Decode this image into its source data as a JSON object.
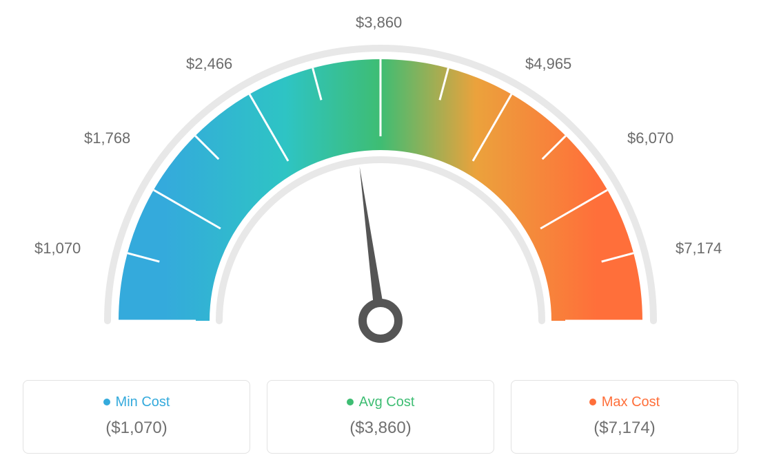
{
  "gauge": {
    "type": "gauge",
    "min_value": 1070,
    "max_value": 7174,
    "avg_value": 3860,
    "needle_value": 3860,
    "scale_labels": [
      "$1,070",
      "$1,768",
      "$2,466",
      "$3,860",
      "$4,965",
      "$6,070",
      "$7,174"
    ],
    "scale_positions_deg": [
      -90,
      -60,
      -30,
      0,
      30,
      60,
      90
    ],
    "colors": {
      "min": "#34aadc",
      "avg": "#3ebd73",
      "max": "#ff6f3a",
      "teal": "#2ec4c4",
      "orange_mid": "#eba23c"
    },
    "outer_arc_color": "#e8e8e8",
    "inner_arc_color": "#e8e8e8",
    "tick_color": "#ffffff",
    "needle_color": "#555555",
    "label_color": "#6b6b6b",
    "label_fontsize": 22,
    "background_color": "#ffffff",
    "arc_outer_radius": 380,
    "arc_width": 132,
    "thin_arc_width": 10
  },
  "legend": {
    "items": [
      {
        "label": "Min Cost",
        "value": "($1,070)",
        "dot_color": "#34aadc",
        "label_color": "#34aadc"
      },
      {
        "label": "Avg Cost",
        "value": "($3,860)",
        "dot_color": "#3ebd73",
        "label_color": "#3ebd73"
      },
      {
        "label": "Max Cost",
        "value": "($7,174)",
        "dot_color": "#ff6f3a",
        "label_color": "#ff6f3a"
      }
    ],
    "card_border_color": "#e2e2e2",
    "card_border_radius": 8,
    "value_color": "#707070",
    "label_fontsize": 20,
    "value_fontsize": 24
  }
}
